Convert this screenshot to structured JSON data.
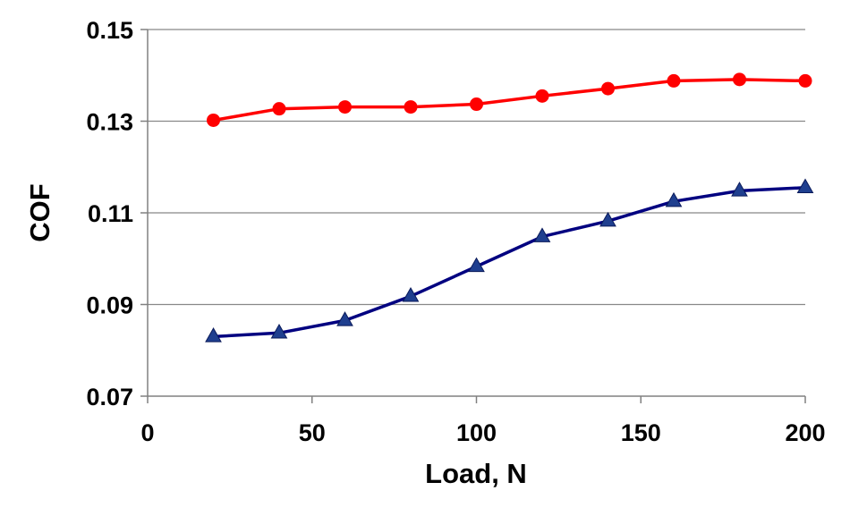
{
  "chart_data": {
    "type": "line",
    "title": "",
    "xlabel": "Load, N",
    "ylabel": "COF",
    "xlim": [
      0,
      200
    ],
    "ylim": [
      0.07,
      0.15
    ],
    "xticks": [
      "0",
      "50",
      "100",
      "150",
      "200"
    ],
    "yticks": [
      "0.07",
      "0.09",
      "0.11",
      "0.13",
      "0.15"
    ],
    "grid": "horizontal",
    "x": [
      20,
      40,
      60,
      80,
      100,
      120,
      140,
      160,
      180,
      200
    ],
    "series": [
      {
        "color": "#ff0000",
        "marker": "circle",
        "values": [
          0.1302,
          0.1327,
          0.1331,
          0.1331,
          0.1337,
          0.1355,
          0.1371,
          0.1388,
          0.1391,
          0.1388
        ]
      },
      {
        "color": "#000080",
        "marker_color": "#1f3f8f",
        "marker": "triangle",
        "values": [
          0.083,
          0.0838,
          0.0865,
          0.0918,
          0.0983,
          0.1048,
          0.1082,
          0.1125,
          0.1148,
          0.1155
        ]
      }
    ]
  }
}
